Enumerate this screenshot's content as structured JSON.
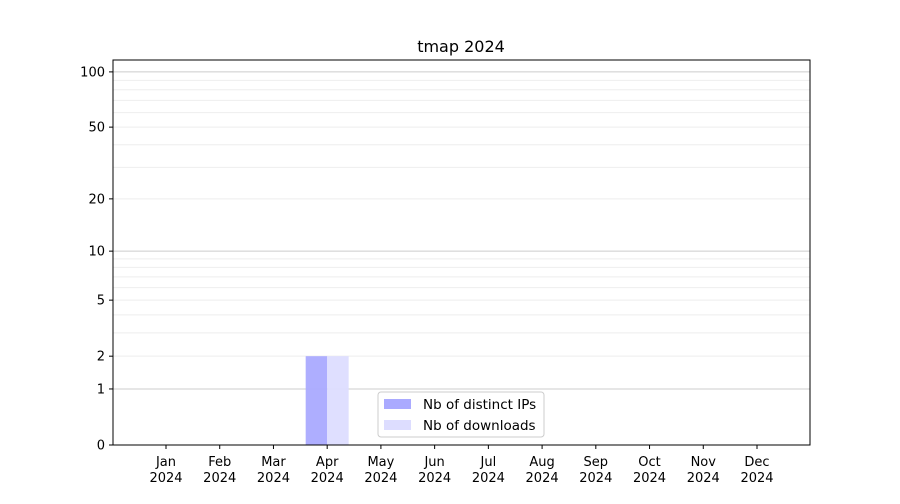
{
  "chart_data": {
    "type": "bar",
    "title": "tmap 2024",
    "xlabel": "",
    "ylabel": "",
    "yscale": "log(1+y)",
    "ylim": [
      0,
      116
    ],
    "grid": true,
    "legend_position": "bottom-center",
    "categories": [
      "Jan\n2024",
      "Feb\n2024",
      "Mar\n2024",
      "Apr\n2024",
      "May\n2024",
      "Jun\n2024",
      "Jul\n2024",
      "Aug\n2024",
      "Sep\n2024",
      "Oct\n2024",
      "Nov\n2024",
      "Dec\n2024"
    ],
    "yticks": [
      0,
      1,
      2,
      5,
      10,
      20,
      50,
      100
    ],
    "ytick_labels": [
      "0",
      "1",
      "2",
      "5",
      "10",
      "20",
      "50",
      "100"
    ],
    "series": [
      {
        "name": "Nb of distinct IPs",
        "color": "#aaaaff",
        "values": [
          0,
          0,
          0,
          2,
          0,
          0,
          0,
          0,
          0,
          0,
          0,
          0
        ]
      },
      {
        "name": "Nb of downloads",
        "color": "#ddddff",
        "values": [
          0,
          0,
          0,
          2,
          0,
          0,
          0,
          0,
          0,
          0,
          0,
          0
        ]
      }
    ]
  }
}
